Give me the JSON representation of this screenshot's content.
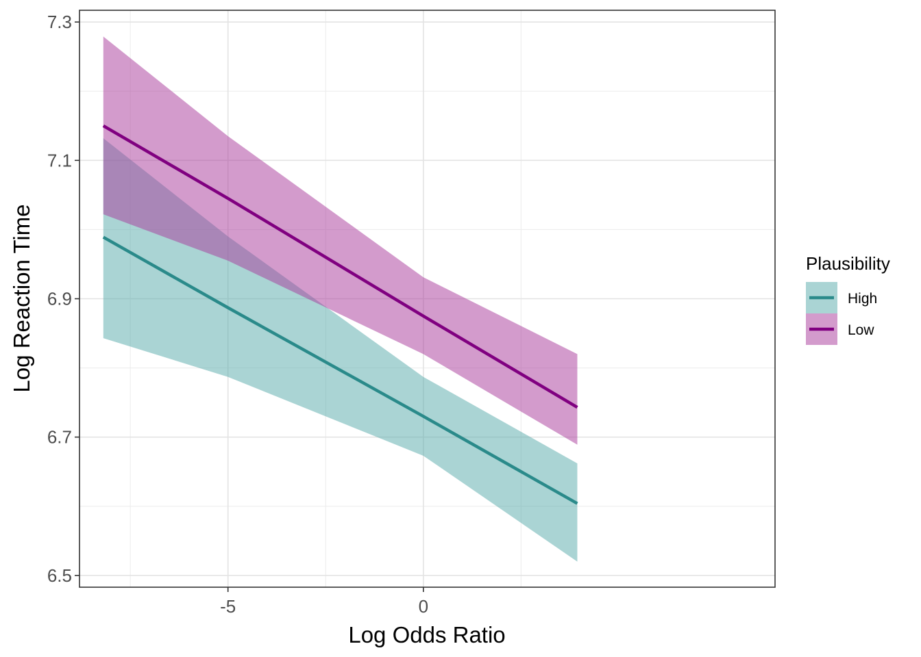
{
  "chart_data": {
    "type": "line",
    "title": "",
    "xlabel": "Log Odds Ratio",
    "ylabel": "Log Reaction Time",
    "xlim": [
      -8.8,
      9.0
    ],
    "ylim": [
      6.483,
      7.317
    ],
    "x_ticks": [
      -5,
      0
    ],
    "x_tick_labels": [
      "-5",
      "0"
    ],
    "x_minor_ticks": [
      -7.5,
      -2.5,
      2.5
    ],
    "y_ticks": [
      6.5,
      6.7,
      6.9,
      7.1,
      7.3
    ],
    "y_tick_labels": [
      "6.5",
      "6.7",
      "6.9",
      "7.1",
      "7.3"
    ],
    "y_minor_ticks": [
      6.6,
      6.8,
      7.0,
      7.2
    ],
    "grid": true,
    "legend": {
      "title": "Plausibility",
      "position": "right"
    },
    "series": [
      {
        "name": "High",
        "color": "#2a8a8a",
        "fill": "#55a9aa",
        "x": [
          -8.19,
          -5,
          0,
          3.94
        ],
        "fit": [
          6.989,
          6.887,
          6.73,
          6.604
        ],
        "lower": [
          6.843,
          6.787,
          6.673,
          6.52
        ],
        "upper": [
          7.132,
          6.99,
          6.787,
          6.662
        ]
      },
      {
        "name": "Low",
        "color": "#800080",
        "fill": "#a8389a",
        "x": [
          -8.19,
          -5,
          0,
          3.94
        ],
        "fit": [
          7.15,
          7.045,
          6.875,
          6.743
        ],
        "lower": [
          7.022,
          6.955,
          6.82,
          6.689
        ],
        "upper": [
          7.279,
          7.135,
          6.931,
          6.82
        ]
      }
    ]
  }
}
